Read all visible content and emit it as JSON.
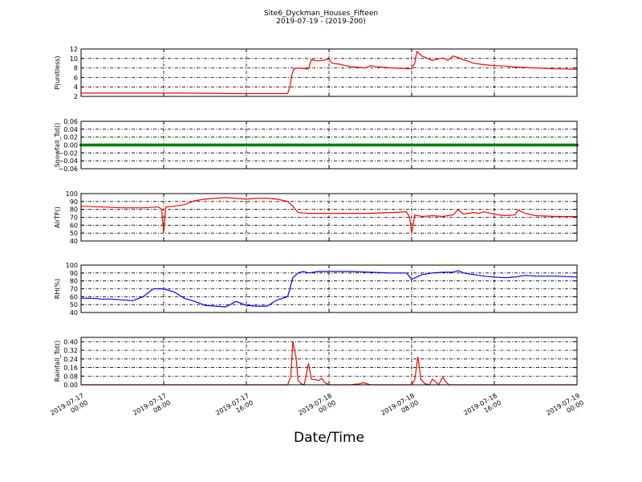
{
  "title": {
    "line1": "Site6_Dyckman_Houses_Fifteen",
    "line2": "2019-07-19 - (2019-200)"
  },
  "xlabel": "Date/Time",
  "x_ticks": [
    {
      "l1": "2019-07-17",
      "l2": "00:00",
      "h": 0
    },
    {
      "l1": "2019-07-17",
      "l2": "08:00",
      "h": 8
    },
    {
      "l1": "2019-07-17",
      "l2": "16:00",
      "h": 16
    },
    {
      "l1": "2019-07-18",
      "l2": "00:00",
      "h": 24
    },
    {
      "l1": "2019-07-18",
      "l2": "08:00",
      "h": 32
    },
    {
      "l1": "2019-07-18",
      "l2": "16:00",
      "h": 40
    },
    {
      "l1": "2019-07-19",
      "l2": "00:00",
      "h": 48
    }
  ],
  "colors": {
    "p": "#ff0000",
    "snow": "#007f00",
    "air": "#ff0000",
    "rh": "#0000ff",
    "rain": "#ff0000"
  },
  "chart_data": [
    {
      "type": "line",
      "ylabel": "P(unitless)",
      "ylim": [
        2,
        12
      ],
      "yticks": [
        2,
        4,
        6,
        8,
        10,
        12
      ],
      "tick_labels": [
        "2",
        "4",
        "6",
        "8",
        "10",
        "12"
      ],
      "x_hours": [
        0,
        5,
        10,
        15,
        20,
        20.2,
        20.4,
        20.6,
        21,
        22,
        22.3,
        22.8,
        23.5,
        24,
        24.3,
        25,
        26,
        27,
        27.5,
        28,
        28.5,
        29,
        30,
        31,
        32,
        32.3,
        32.5,
        33,
        34,
        35,
        35.5,
        36,
        36.5,
        37,
        37.5,
        38,
        39,
        40,
        41,
        42,
        43,
        44,
        45,
        46,
        47,
        48
      ],
      "series": [
        {
          "color_key": "p",
          "values": [
            2.7,
            2.7,
            2.7,
            2.6,
            2.6,
            4.0,
            6.5,
            7.8,
            8.0,
            7.8,
            9.8,
            9.5,
            9.6,
            9.9,
            9.0,
            8.8,
            8.3,
            8.1,
            8.0,
            8.5,
            8.3,
            8.2,
            8.0,
            7.9,
            7.8,
            9.0,
            11.5,
            10.5,
            9.6,
            10.1,
            9.6,
            10.5,
            10.2,
            9.7,
            9.4,
            9.0,
            8.7,
            8.5,
            8.4,
            8.2,
            8.1,
            8.0,
            7.9,
            7.8,
            7.8,
            7.7
          ]
        }
      ]
    },
    {
      "type": "scatter",
      "ylabel": "Snowfall_Tot()",
      "ylim": [
        -0.06,
        0.06
      ],
      "yticks": [
        -0.06,
        -0.04,
        -0.02,
        0,
        0.02,
        0.04,
        0.06
      ],
      "tick_labels": [
        "−0.06",
        "−0.04",
        "−0.02",
        "0.00",
        "0.02",
        "0.04",
        "0.06"
      ],
      "x_hours": [
        0,
        48
      ],
      "step_hours": 0.25,
      "series": [
        {
          "color_key": "snow",
          "values": [
            0,
            0
          ]
        }
      ]
    },
    {
      "type": "line",
      "ylabel": "AirTF()",
      "ylim": [
        40,
        100
      ],
      "yticks": [
        40,
        50,
        60,
        70,
        80,
        90,
        100
      ],
      "tick_labels": [
        "40",
        "50",
        "60",
        "70",
        "80",
        "90",
        "100"
      ],
      "x_hours": [
        0,
        2,
        4,
        6,
        7.5,
        7.8,
        8,
        8.2,
        9,
        10,
        11,
        12,
        13,
        14,
        15,
        16,
        17,
        18,
        19,
        20,
        20.5,
        21,
        22,
        24,
        26,
        28,
        30,
        31.5,
        31.8,
        32,
        32.3,
        33,
        34,
        35,
        35.5,
        36,
        36.5,
        37,
        38,
        38.5,
        39,
        40,
        41,
        42,
        42.3,
        43,
        44,
        46,
        48
      ],
      "series": [
        {
          "color_key": "air",
          "values": [
            84,
            83,
            82,
            82,
            83,
            80,
            50,
            83,
            84,
            86,
            91,
            93,
            94,
            95,
            94,
            93,
            94,
            94,
            93,
            90,
            84,
            76,
            75,
            75,
            75,
            75,
            76,
            77,
            70,
            50,
            73,
            71,
            72,
            71,
            72,
            73,
            80,
            74,
            76,
            75,
            77,
            74,
            72,
            73,
            79,
            75,
            72,
            71,
            71
          ]
        }
      ]
    },
    {
      "type": "line",
      "ylabel": "RH(%)",
      "ylim": [
        40,
        100
      ],
      "yticks": [
        40,
        50,
        60,
        70,
        80,
        90,
        100
      ],
      "tick_labels": [
        "40",
        "50",
        "60",
        "70",
        "80",
        "90",
        "100"
      ],
      "x_hours": [
        0,
        1,
        2,
        3,
        4,
        5,
        6,
        7,
        8,
        9,
        10,
        11,
        12,
        13,
        14,
        15,
        16,
        17,
        18,
        19,
        20,
        20.5,
        21,
        21.5,
        22,
        23,
        24,
        26,
        28,
        30,
        31.5,
        32,
        32.5,
        33,
        34,
        35,
        36,
        36.5,
        37,
        38,
        39,
        40,
        41,
        42,
        43,
        44,
        46,
        48
      ],
      "series": [
        {
          "color_key": "rh",
          "values": [
            58,
            58,
            57,
            57,
            56,
            55,
            60,
            70,
            70,
            66,
            58,
            54,
            49,
            48,
            47,
            54,
            49,
            48,
            48,
            56,
            60,
            84,
            90,
            92,
            90,
            92,
            92,
            92,
            91,
            90,
            90,
            82,
            85,
            88,
            90,
            91,
            91,
            93,
            90,
            88,
            86,
            85,
            84,
            85,
            87,
            86,
            86,
            85
          ]
        }
      ]
    },
    {
      "type": "line",
      "ylabel": "Rainfall_Tot()",
      "ylim": [
        0,
        0.44
      ],
      "yticks": [
        0,
        0.08,
        0.16,
        0.24,
        0.32,
        0.4
      ],
      "tick_labels": [
        "0.00",
        "0.08",
        "0.16",
        "0.24",
        "0.32",
        "0.40"
      ],
      "x_hours": [
        0,
        20,
        20.3,
        20.5,
        20.8,
        21,
        21.3,
        21.6,
        22,
        22.3,
        22.6,
        23,
        23.3,
        23.6,
        24,
        26,
        27,
        27.3,
        28,
        30,
        32,
        32.3,
        32.6,
        32.9,
        33.3,
        33.7,
        34,
        34.3,
        34.6,
        35,
        35.3,
        35.6,
        36,
        40,
        48
      ],
      "series": [
        {
          "color_key": "rain",
          "values": [
            0,
            0,
            0.08,
            0.4,
            0.26,
            0.04,
            0.01,
            0,
            0.2,
            0.05,
            0.05,
            0.04,
            0.06,
            0.02,
            0,
            0,
            0.01,
            0.02,
            0,
            0,
            0,
            0.05,
            0.26,
            0.05,
            0.01,
            0,
            0.05,
            0.03,
            0,
            0.07,
            0.03,
            0,
            0,
            0,
            0
          ]
        }
      ]
    }
  ]
}
